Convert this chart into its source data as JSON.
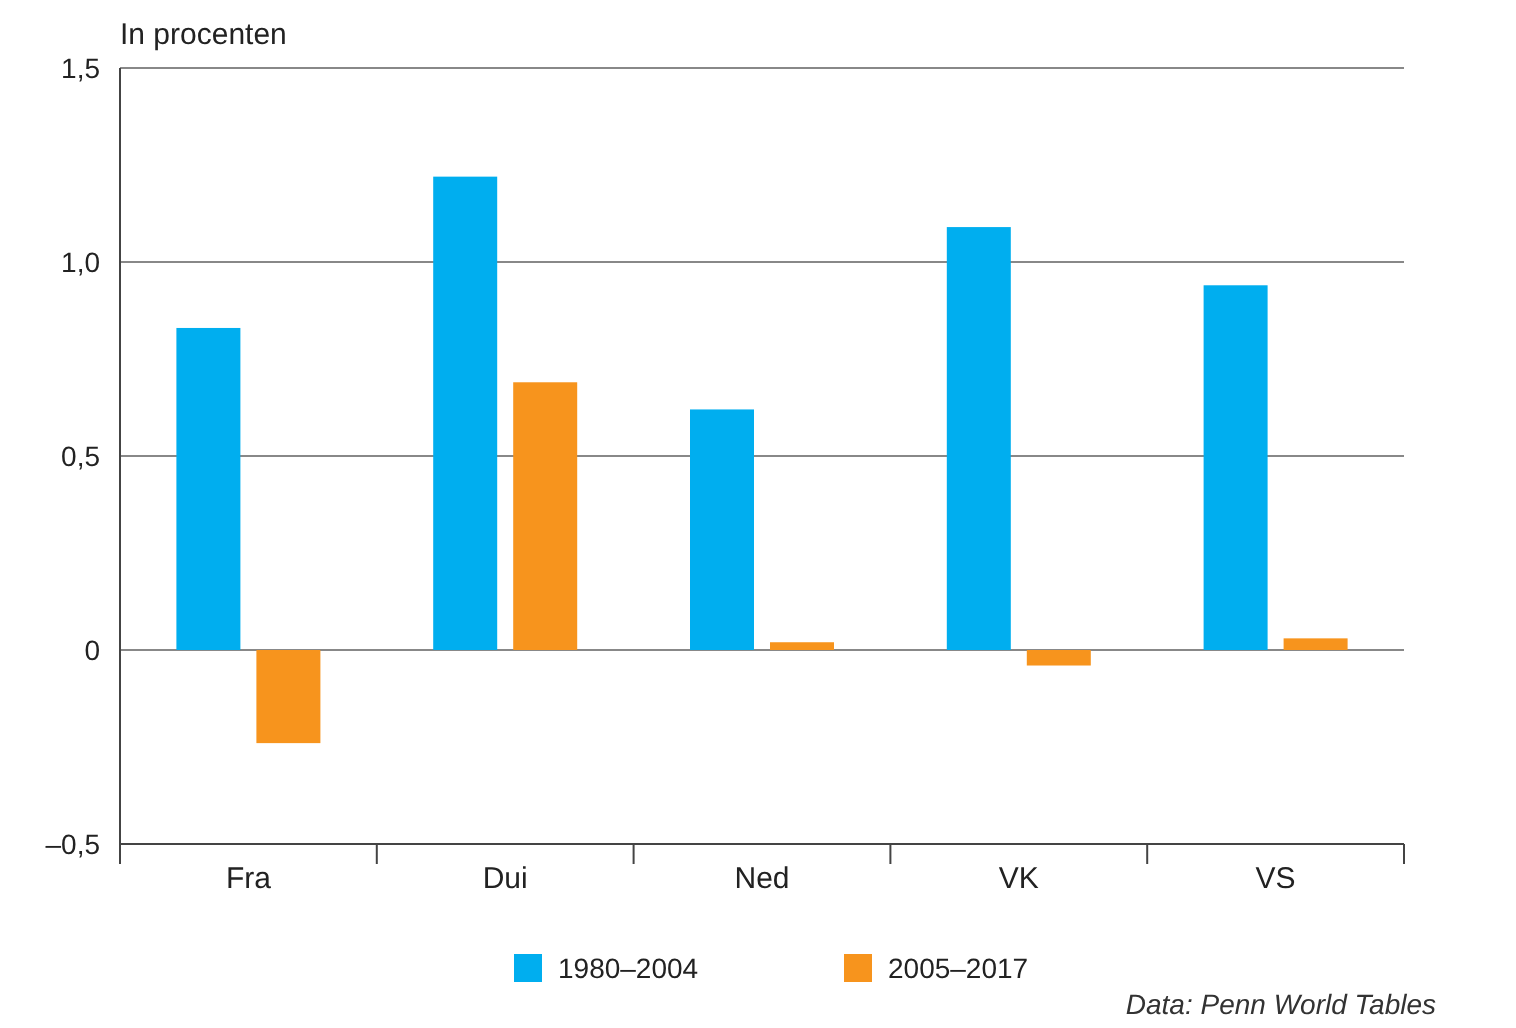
{
  "chart_data": {
    "type": "bar",
    "ylabel": "In procenten",
    "categories": [
      "Fra",
      "Dui",
      "Ned",
      "VK",
      "VS"
    ],
    "series": [
      {
        "name": "1980–2004",
        "color": "#00aeef",
        "values": [
          0.83,
          1.22,
          0.62,
          1.09,
          0.94
        ]
      },
      {
        "name": "2005–2017",
        "color": "#f7941d",
        "values": [
          -0.24,
          0.69,
          0.02,
          -0.04,
          0.03
        ]
      }
    ],
    "ylim": [
      -0.5,
      1.5
    ],
    "yticks": [
      {
        "value": -0.5,
        "label": "–0,5"
      },
      0,
      {
        "value": 0.5,
        "label": "0,5"
      },
      {
        "value": 1,
        "label": "1,0"
      },
      {
        "value": 1.5,
        "label": "1,5"
      }
    ],
    "grid": "y",
    "legend": "bottom",
    "annotations": [
      "Data: Penn World Tables"
    ]
  }
}
